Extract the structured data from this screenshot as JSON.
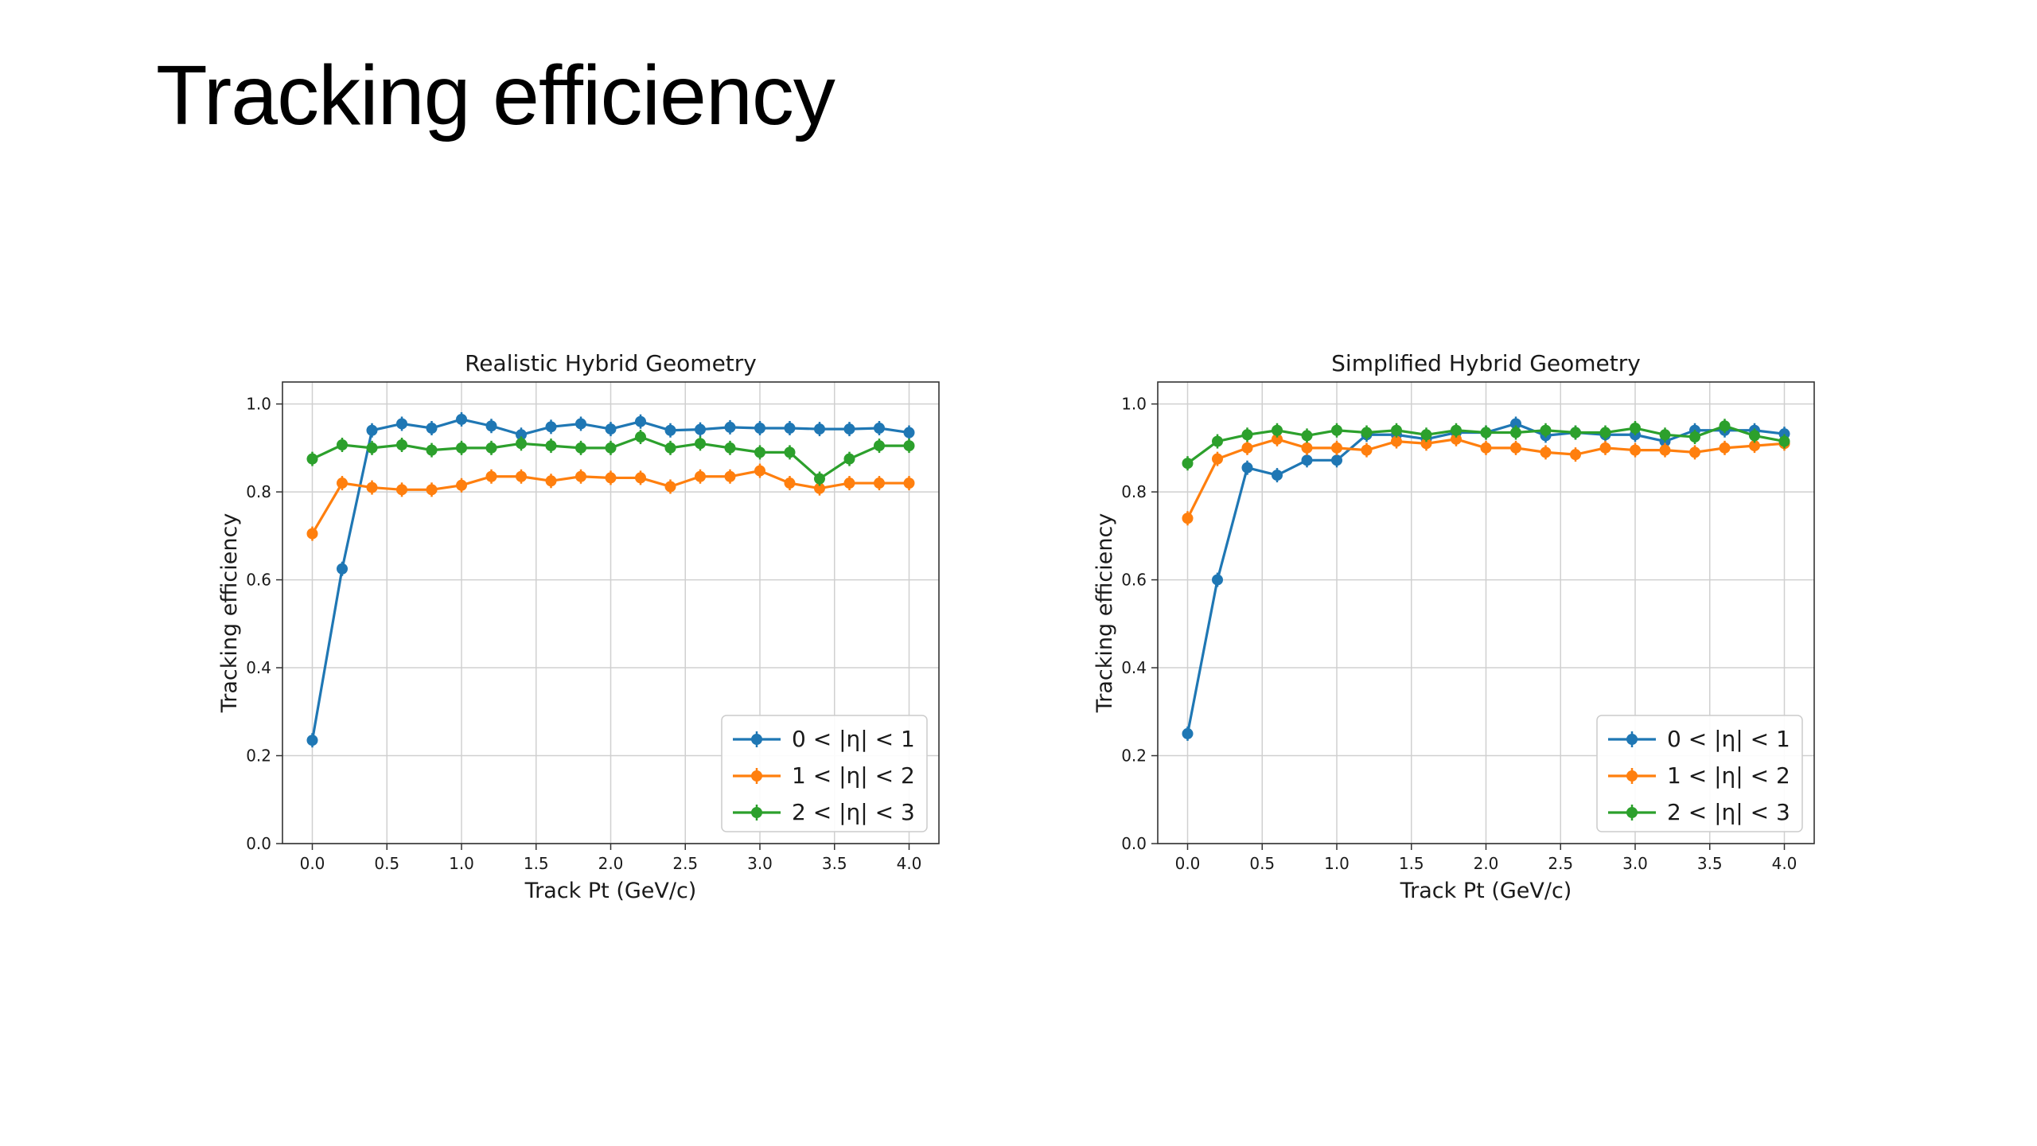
{
  "slide": {
    "title": "Tracking efficiency"
  },
  "chart_data": [
    {
      "type": "line",
      "title": "Realistic Hybrid Geometry",
      "xlabel": "Track Pt (GeV/c)",
      "ylabel": "Tracking efficiency",
      "xlim": [
        -0.2,
        4.2
      ],
      "ylim": [
        0.0,
        1.05
      ],
      "xticks": [
        "0.0",
        "0.5",
        "1.0",
        "1.5",
        "2.0",
        "2.5",
        "3.0",
        "3.5",
        "4.0"
      ],
      "yticks": [
        "0.0",
        "0.2",
        "0.4",
        "0.6",
        "0.8",
        "1.0"
      ],
      "grid": true,
      "legend_position": "lower-right",
      "x": [
        0.0,
        0.2,
        0.4,
        0.6,
        0.8,
        1.0,
        1.2,
        1.4,
        1.6,
        1.8,
        2.0,
        2.2,
        2.4,
        2.6,
        2.8,
        3.0,
        3.2,
        3.4,
        3.6,
        3.8,
        4.0
      ],
      "series": [
        {
          "name": "0 < |η| < 1",
          "color": "#1f77b4",
          "values": [
            0.235,
            0.625,
            0.94,
            0.955,
            0.945,
            0.965,
            0.95,
            0.93,
            0.948,
            0.955,
            0.943,
            0.96,
            0.94,
            0.942,
            0.947,
            0.945,
            0.945,
            0.943,
            0.943,
            0.945,
            0.935
          ]
        },
        {
          "name": "1 < |η| < 2",
          "color": "#ff7f0e",
          "values": [
            0.705,
            0.82,
            0.81,
            0.805,
            0.805,
            0.815,
            0.835,
            0.835,
            0.825,
            0.835,
            0.832,
            0.832,
            0.812,
            0.835,
            0.835,
            0.848,
            0.82,
            0.808,
            0.82,
            0.82,
            0.82
          ]
        },
        {
          "name": "2 < |η| < 3",
          "color": "#2ca02c",
          "values": [
            0.875,
            0.907,
            0.9,
            0.907,
            0.895,
            0.9,
            0.9,
            0.91,
            0.905,
            0.9,
            0.9,
            0.925,
            0.9,
            0.91,
            0.9,
            0.89,
            0.89,
            0.83,
            0.875,
            0.905,
            0.905
          ]
        }
      ]
    },
    {
      "type": "line",
      "title": "Simplified Hybrid Geometry",
      "xlabel": "Track Pt (GeV/c)",
      "ylabel": "Tracking efficiency",
      "xlim": [
        -0.2,
        4.2
      ],
      "ylim": [
        0.0,
        1.05
      ],
      "xticks": [
        "0.0",
        "0.5",
        "1.0",
        "1.5",
        "2.0",
        "2.5",
        "3.0",
        "3.5",
        "4.0"
      ],
      "yticks": [
        "0.0",
        "0.2",
        "0.4",
        "0.6",
        "0.8",
        "1.0"
      ],
      "grid": true,
      "legend_position": "lower-right",
      "x": [
        0.0,
        0.2,
        0.4,
        0.6,
        0.8,
        1.0,
        1.2,
        1.4,
        1.6,
        1.8,
        2.0,
        2.2,
        2.4,
        2.6,
        2.8,
        3.0,
        3.2,
        3.4,
        3.6,
        3.8,
        4.0
      ],
      "series": [
        {
          "name": "0 < |η| < 1",
          "color": "#1f77b4",
          "values": [
            0.25,
            0.6,
            0.855,
            0.838,
            0.872,
            0.872,
            0.93,
            0.93,
            0.92,
            0.935,
            0.935,
            0.955,
            0.928,
            0.935,
            0.93,
            0.93,
            0.915,
            0.94,
            0.94,
            0.94,
            0.932
          ]
        },
        {
          "name": "1 < |η| < 2",
          "color": "#ff7f0e",
          "values": [
            0.74,
            0.875,
            0.9,
            0.92,
            0.9,
            0.9,
            0.895,
            0.915,
            0.91,
            0.92,
            0.9,
            0.9,
            0.89,
            0.885,
            0.9,
            0.895,
            0.895,
            0.89,
            0.9,
            0.905,
            0.91
          ]
        },
        {
          "name": "2 < |η| < 3",
          "color": "#2ca02c",
          "values": [
            0.865,
            0.915,
            0.93,
            0.94,
            0.928,
            0.94,
            0.935,
            0.94,
            0.93,
            0.94,
            0.935,
            0.935,
            0.94,
            0.935,
            0.935,
            0.945,
            0.93,
            0.925,
            0.95,
            0.928,
            0.915
          ]
        }
      ]
    }
  ]
}
